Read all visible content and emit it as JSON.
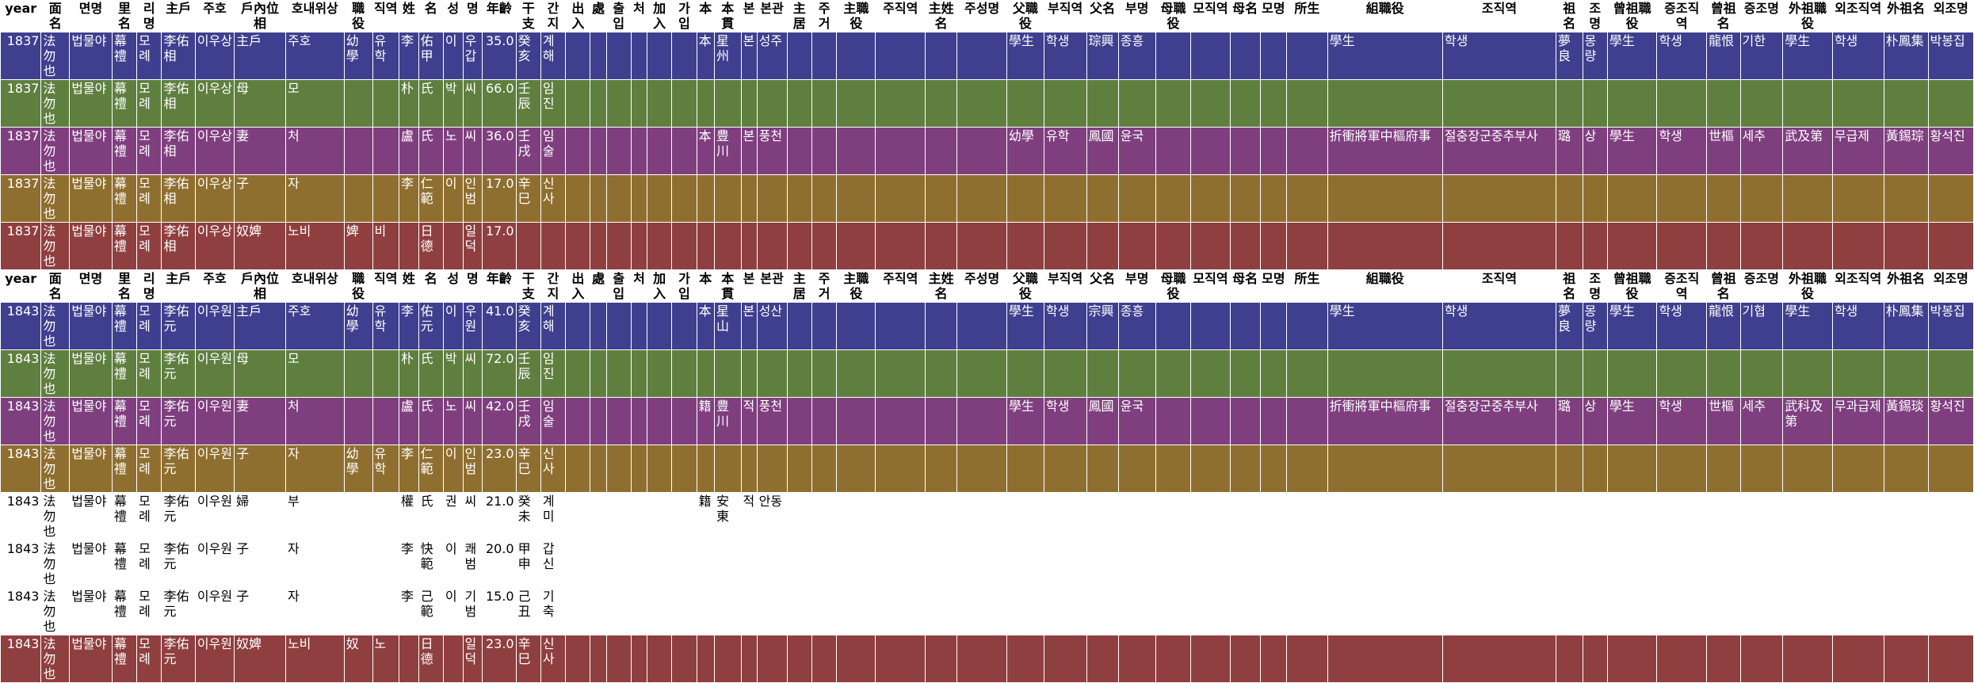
{
  "header": [
    "year",
    "面名",
    "면명",
    "里名",
    "리명",
    "主戶",
    "주호",
    "戶內位相",
    "호내위상",
    "職役",
    "직역",
    "姓",
    "名",
    "성",
    "명",
    "年齡",
    "干支",
    "간지",
    "出入",
    "處",
    "출입",
    "처",
    "加入",
    "가입",
    "本",
    "本貫",
    "본",
    "본관",
    "主居",
    "주거",
    "主職役",
    "주직역",
    "主姓名",
    "주성명",
    "父職役",
    "부직역",
    "父名",
    "부명",
    "母職役",
    "모직역",
    "母名",
    "모명",
    "所生",
    "組職役",
    "조직역",
    "祖名",
    "조명",
    "曾祖職役",
    "증조직역",
    "曾祖名",
    "증조명",
    "外祖職役",
    "외조직역",
    "外祖名",
    "외조명"
  ],
  "colors": {
    "blue": "#3f3f8f",
    "green": "#5f7f3f",
    "purple": "#7f3f7f",
    "gold": "#8f6f2f",
    "red": "#8f3f3f",
    "white": "#ffffff"
  },
  "rows1": [
    {
      "color": "blue",
      "cells": [
        "1837",
        "法勿也",
        "법물야",
        "幕禮",
        "모례",
        "李佑相",
        "이우상",
        "主戶",
        "주호",
        "幼學",
        "유학",
        "李",
        "佑甲",
        "이",
        "우갑",
        "35.0",
        "癸亥",
        "계해",
        "",
        "",
        "",
        "",
        "",
        "",
        "本",
        "星州",
        "본",
        "성주",
        "",
        "",
        "",
        "",
        "",
        "",
        "學生",
        "학생",
        "琮興",
        "종흥",
        "",
        "",
        "",
        "",
        "",
        "學生",
        "학생",
        "夢良",
        "몽량",
        "學生",
        "학생",
        "龍恨",
        "기한",
        "學生",
        "학생",
        "朴鳳集",
        "박봉집"
      ]
    },
    {
      "color": "green",
      "cells": [
        "1837",
        "法勿也",
        "법물야",
        "幕禮",
        "모례",
        "李佑相",
        "이우상",
        "母",
        "모",
        "",
        "",
        "朴",
        "氏",
        "박",
        "씨",
        "66.0",
        "壬辰",
        "임진",
        "",
        "",
        "",
        "",
        "",
        "",
        "",
        "",
        "",
        "",
        "",
        "",
        "",
        "",
        "",
        "",
        "",
        "",
        "",
        "",
        "",
        "",
        "",
        "",
        "",
        "",
        "",
        "",
        "",
        "",
        "",
        "",
        "",
        "",
        "",
        "",
        ""
      ]
    },
    {
      "color": "purple",
      "cells": [
        "1837",
        "法勿也",
        "법물야",
        "幕禮",
        "모례",
        "李佑相",
        "이우상",
        "妻",
        "처",
        "",
        "",
        "盧",
        "氏",
        "노",
        "씨",
        "36.0",
        "壬戌",
        "임술",
        "",
        "",
        "",
        "",
        "",
        "",
        "本",
        "豊川",
        "본",
        "풍천",
        "",
        "",
        "",
        "",
        "",
        "",
        "幼學",
        "유학",
        "鳳國",
        "윤국",
        "",
        "",
        "",
        "",
        "",
        "折衝將軍中樞府事",
        "절충장군중추부사",
        "璐",
        "상",
        "學生",
        "학생",
        "世樞",
        "세추",
        "武及第",
        "무급제",
        "黃錫琮",
        "황석진"
      ]
    },
    {
      "color": "gold",
      "cells": [
        "1837",
        "法勿也",
        "법물야",
        "幕禮",
        "모례",
        "李佑相",
        "이우상",
        "子",
        "자",
        "",
        "",
        "李",
        "仁範",
        "이",
        "인범",
        "17.0",
        "辛巳",
        "신사",
        "",
        "",
        "",
        "",
        "",
        "",
        "",
        "",
        "",
        "",
        "",
        "",
        "",
        "",
        "",
        "",
        "",
        "",
        "",
        "",
        "",
        "",
        "",
        "",
        "",
        "",
        "",
        "",
        "",
        "",
        "",
        "",
        "",
        "",
        "",
        "",
        ""
      ]
    },
    {
      "color": "red",
      "cells": [
        "1837",
        "法勿也",
        "법물야",
        "幕禮",
        "모례",
        "李佑相",
        "이우상",
        "奴婢",
        "노비",
        "婢",
        "비",
        "",
        "日德",
        "",
        "일덕",
        "17.0",
        "",
        "",
        "",
        "",
        "",
        "",
        "",
        "",
        "",
        "",
        "",
        "",
        "",
        "",
        "",
        "",
        "",
        "",
        "",
        "",
        "",
        "",
        "",
        "",
        "",
        "",
        "",
        "",
        "",
        "",
        "",
        "",
        "",
        "",
        "",
        "",
        "",
        "",
        ""
      ]
    }
  ],
  "rows2": [
    {
      "color": "blue",
      "cells": [
        "1843",
        "法勿也",
        "법물야",
        "幕禮",
        "모례",
        "李佑元",
        "이우원",
        "主戶",
        "주호",
        "幼學",
        "유학",
        "李",
        "佑元",
        "이",
        "우원",
        "41.0",
        "癸亥",
        "계해",
        "",
        "",
        "",
        "",
        "",
        "",
        "本",
        "星山",
        "본",
        "성산",
        "",
        "",
        "",
        "",
        "",
        "",
        "學生",
        "학생",
        "宗興",
        "종흥",
        "",
        "",
        "",
        "",
        "",
        "學生",
        "학생",
        "夢良",
        "몽량",
        "學生",
        "학생",
        "龍恨",
        "기협",
        "學生",
        "학생",
        "朴鳳集",
        "박봉집"
      ]
    },
    {
      "color": "green",
      "cells": [
        "1843",
        "法勿也",
        "법물야",
        "幕禮",
        "모례",
        "李佑元",
        "이우원",
        "母",
        "모",
        "",
        "",
        "朴",
        "氏",
        "박",
        "씨",
        "72.0",
        "壬辰",
        "임진",
        "",
        "",
        "",
        "",
        "",
        "",
        "",
        "",
        "",
        "",
        "",
        "",
        "",
        "",
        "",
        "",
        "",
        "",
        "",
        "",
        "",
        "",
        "",
        "",
        "",
        "",
        "",
        "",
        "",
        "",
        "",
        "",
        "",
        "",
        "",
        "",
        ""
      ]
    },
    {
      "color": "purple",
      "cells": [
        "1843",
        "法勿也",
        "법물야",
        "幕禮",
        "모례",
        "李佑元",
        "이우원",
        "妻",
        "처",
        "",
        "",
        "盧",
        "氏",
        "노",
        "씨",
        "42.0",
        "壬戌",
        "임술",
        "",
        "",
        "",
        "",
        "",
        "",
        "籍",
        "豊川",
        "적",
        "풍천",
        "",
        "",
        "",
        "",
        "",
        "",
        "學生",
        "학생",
        "鳳國",
        "윤국",
        "",
        "",
        "",
        "",
        "",
        "折衝將軍中樞府事",
        "절충장군중추부사",
        "璐",
        "상",
        "學生",
        "학생",
        "世樞",
        "세추",
        "武科及第",
        "무과급제",
        "黃錫琰",
        "황석진"
      ]
    },
    {
      "color": "gold",
      "cells": [
        "1843",
        "法勿也",
        "법물야",
        "幕禮",
        "모례",
        "李佑元",
        "이우원",
        "子",
        "자",
        "幼學",
        "유학",
        "李",
        "仁範",
        "이",
        "인범",
        "23.0",
        "辛巳",
        "신사",
        "",
        "",
        "",
        "",
        "",
        "",
        "",
        "",
        "",
        "",
        "",
        "",
        "",
        "",
        "",
        "",
        "",
        "",
        "",
        "",
        "",
        "",
        "",
        "",
        "",
        "",
        "",
        "",
        "",
        "",
        "",
        "",
        "",
        "",
        "",
        "",
        ""
      ]
    },
    {
      "color": "white",
      "cells": [
        "1843",
        "法勿也",
        "법물야",
        "幕禮",
        "모례",
        "李佑元",
        "이우원",
        "婦",
        "부",
        "",
        "",
        "權",
        "氏",
        "권",
        "씨",
        "21.0",
        "癸未",
        "계미",
        "",
        "",
        "",
        "",
        "",
        "",
        "籍",
        "安東",
        "적",
        "안동",
        "",
        "",
        "",
        "",
        "",
        "",
        "",
        "",
        "",
        "",
        "",
        "",
        "",
        "",
        "",
        "",
        "",
        "",
        "",
        "",
        "",
        "",
        "",
        "",
        "",
        "",
        ""
      ]
    },
    {
      "color": "white",
      "cells": [
        "1843",
        "法勿也",
        "법물야",
        "幕禮",
        "모례",
        "李佑元",
        "이우원",
        "子",
        "자",
        "",
        "",
        "李",
        "快範",
        "이",
        "쾌범",
        "20.0",
        "甲申",
        "갑신",
        "",
        "",
        "",
        "",
        "",
        "",
        "",
        "",
        "",
        "",
        "",
        "",
        "",
        "",
        "",
        "",
        "",
        "",
        "",
        "",
        "",
        "",
        "",
        "",
        "",
        "",
        "",
        "",
        "",
        "",
        "",
        "",
        "",
        "",
        "",
        "",
        ""
      ]
    },
    {
      "color": "white",
      "cells": [
        "1843",
        "法勿也",
        "법물야",
        "幕禮",
        "모례",
        "李佑元",
        "이우원",
        "子",
        "자",
        "",
        "",
        "李",
        "己範",
        "이",
        "기범",
        "15.0",
        "己丑",
        "기축",
        "",
        "",
        "",
        "",
        "",
        "",
        "",
        "",
        "",
        "",
        "",
        "",
        "",
        "",
        "",
        "",
        "",
        "",
        "",
        "",
        "",
        "",
        "",
        "",
        "",
        "",
        "",
        "",
        "",
        "",
        "",
        "",
        "",
        "",
        "",
        "",
        ""
      ]
    },
    {
      "color": "red",
      "cells": [
        "1843",
        "法勿也",
        "법물야",
        "幕禮",
        "모례",
        "李佑元",
        "이우원",
        "奴婢",
        "노비",
        "奴",
        "노",
        "",
        "日德",
        "",
        "일덕",
        "23.0",
        "辛巳",
        "신사",
        "",
        "",
        "",
        "",
        "",
        "",
        "",
        "",
        "",
        "",
        "",
        "",
        "",
        "",
        "",
        "",
        "",
        "",
        "",
        "",
        "",
        "",
        "",
        "",
        "",
        "",
        "",
        "",
        "",
        "",
        "",
        "",
        "",
        "",
        "",
        "",
        ""
      ]
    }
  ]
}
